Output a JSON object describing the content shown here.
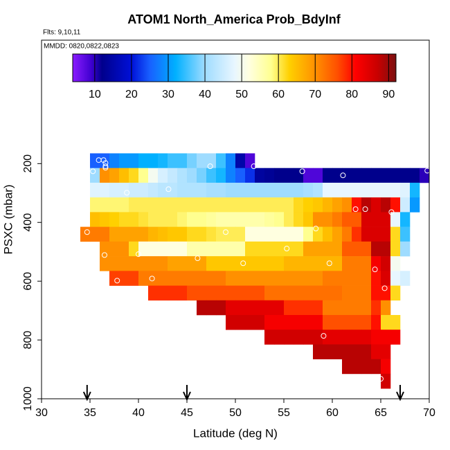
{
  "chart_data": {
    "type": "heatmap",
    "title": "ATOM1 North_America Prob_BdyInf",
    "subtitle": "Flts: 9,10,11",
    "annotation": "MMDD: 0820,0822,0823",
    "xlabel": "Latitude (deg N)",
    "ylabel": "PSXC (mbar)",
    "xlim": [
      30,
      70
    ],
    "xticks": [
      30,
      35,
      40,
      45,
      50,
      55,
      60,
      65,
      70
    ],
    "ylim": [
      1000,
      -220
    ],
    "yticks": [
      200,
      400,
      600,
      800,
      1000
    ],
    "clim": [
      4,
      92
    ],
    "cticks": [
      10,
      20,
      30,
      40,
      50,
      60,
      70,
      80,
      90
    ],
    "colorscale": [
      {
        "value": 4,
        "color": "#8a1cff"
      },
      {
        "value": 9,
        "color": "#4000d0"
      },
      {
        "value": 12,
        "color": "#00008c"
      },
      {
        "value": 20,
        "color": "#0010d8"
      },
      {
        "value": 25,
        "color": "#1860ff"
      },
      {
        "value": 32,
        "color": "#00b0ff"
      },
      {
        "value": 40,
        "color": "#9fdcff"
      },
      {
        "value": 48,
        "color": "#e8f6ff"
      },
      {
        "value": 52,
        "color": "#ffffe0"
      },
      {
        "value": 58,
        "color": "#ffff90"
      },
      {
        "value": 63,
        "color": "#ffd000"
      },
      {
        "value": 70,
        "color": "#ff9000"
      },
      {
        "value": 76,
        "color": "#ff5000"
      },
      {
        "value": 81,
        "color": "#ff0000"
      },
      {
        "value": 87,
        "color": "#c80000"
      },
      {
        "value": 92,
        "color": "#7a1010"
      }
    ],
    "cell_height": 50,
    "cell_width": 1,
    "rows": [
      {
        "p": 190,
        "lat0": 35,
        "values": [
          25,
          25,
          28,
          30,
          30,
          32,
          32,
          33,
          35,
          35,
          38,
          40,
          40,
          35,
          28,
          15,
          8
        ]
      },
      {
        "p": 240,
        "lat0": 35,
        "values": [
          40,
          70,
          68,
          65,
          62,
          58,
          50,
          46,
          44,
          42,
          40,
          38,
          35,
          33,
          28,
          25,
          22,
          14,
          13,
          12,
          12,
          12,
          8,
          8,
          12,
          12,
          12,
          12,
          12,
          12,
          12,
          12,
          12,
          12,
          10
        ]
      },
      {
        "p": 290,
        "lat0": 35,
        "values": [
          47,
          47,
          46,
          46,
          45,
          45,
          44,
          43,
          43,
          42,
          42,
          42,
          41,
          41,
          40,
          40,
          40,
          40,
          40,
          40,
          40,
          40,
          41,
          42,
          48,
          48,
          48,
          48,
          48,
          48,
          48,
          48,
          47,
          33
        ]
      },
      {
        "p": 340,
        "lat0": 35,
        "values": [
          59,
          59,
          59,
          59,
          60,
          60,
          60,
          60,
          60,
          60,
          60,
          60,
          60,
          60,
          60,
          60,
          60,
          60,
          60,
          60,
          60,
          62,
          63,
          64,
          66,
          68,
          70,
          80,
          88,
          85,
          88,
          80,
          45,
          30
        ]
      },
      {
        "p": 390,
        "lat0": 35,
        "values": [
          65,
          64,
          63,
          62,
          62,
          61,
          60,
          60,
          60,
          59,
          58,
          58,
          57,
          56,
          56,
          56,
          56,
          56,
          57,
          58,
          60,
          62,
          64,
          70,
          70,
          72,
          75,
          75,
          85,
          85,
          85,
          48,
          33
        ]
      },
      {
        "p": 440,
        "lat0": 34,
        "values": [
          72,
          72,
          72,
          68,
          68,
          68,
          68,
          66,
          65,
          64,
          64,
          62,
          62,
          61,
          60,
          60,
          60,
          52,
          52,
          52,
          52,
          52,
          52,
          58,
          62,
          65,
          68,
          72,
          78,
          85,
          85,
          85,
          62,
          35
        ]
      },
      {
        "p": 490,
        "lat0": 36,
        "values": [
          70,
          70,
          70,
          62,
          52,
          52,
          52,
          52,
          52,
          56,
          56,
          56,
          56,
          56,
          56,
          62,
          62,
          62,
          62,
          62,
          62,
          68,
          68,
          68,
          68,
          75,
          75,
          75,
          88,
          88,
          62,
          40
        ]
      },
      {
        "p": 540,
        "lat0": 36,
        "values": [
          70,
          70,
          70,
          70,
          70,
          70,
          70,
          68,
          68,
          68,
          68,
          64,
          64,
          64,
          64,
          64,
          64,
          64,
          64,
          66,
          66,
          66,
          66,
          66,
          66,
          72,
          72,
          72,
          82,
          86,
          50
        ]
      },
      {
        "p": 590,
        "lat0": 37,
        "values": [
          77,
          77,
          77,
          72,
          72,
          72,
          72,
          72,
          72,
          72,
          72,
          72,
          70,
          70,
          70,
          70,
          70,
          70,
          70,
          70,
          70,
          70,
          72,
          72,
          72,
          72,
          72,
          80,
          85,
          48,
          46
        ]
      },
      {
        "p": 640,
        "lat0": 41,
        "values": [
          78,
          78,
          78,
          78,
          76,
          76,
          76,
          76,
          76,
          76,
          76,
          76,
          73,
          73,
          73,
          73,
          73,
          73,
          73,
          73,
          72,
          72,
          72,
          80,
          80,
          62
        ]
      },
      {
        "p": 690,
        "lat0": 46,
        "values": [
          88,
          88,
          88,
          84,
          84,
          84,
          84,
          84,
          84,
          78,
          78,
          78,
          78,
          72,
          72,
          72,
          72,
          72,
          78,
          70
        ]
      },
      {
        "p": 740,
        "lat0": 49,
        "values": [
          86,
          86,
          86,
          86,
          82,
          82,
          82,
          82,
          82,
          82,
          76,
          76,
          76,
          76,
          76,
          80,
          62,
          62
        ]
      },
      {
        "p": 790,
        "lat0": 53,
        "values": [
          86,
          86,
          86,
          86,
          86,
          86,
          84,
          84,
          84,
          84,
          84,
          82,
          82,
          82
        ]
      },
      {
        "p": 840,
        "lat0": 58,
        "values": [
          88,
          88,
          88,
          88,
          88,
          88,
          84,
          84
        ]
      },
      {
        "p": 890,
        "lat0": 61,
        "values": [
          88,
          88,
          88,
          88,
          82
        ]
      },
      {
        "p": 940,
        "lat0": 65,
        "values": [
          86
        ]
      }
    ],
    "points": {
      "lat": [
        35.9,
        36.4,
        36.6,
        36.6,
        36.6,
        35.3,
        47.4,
        51.9,
        56.9,
        61.1,
        69.8,
        38.8,
        43.1,
        34.7,
        49,
        58.3,
        62.4,
        63.4,
        66.1,
        36.5,
        40,
        46.1,
        50.8,
        55.3,
        59.7,
        64.4,
        65.4,
        37.8,
        41.4,
        59.1,
        65
      ],
      "p": [
        188,
        188,
        198,
        209,
        214,
        226,
        209,
        209,
        226,
        240,
        224,
        299,
        287,
        433,
        433,
        421,
        355,
        355,
        365,
        511,
        508,
        522,
        539,
        489,
        539,
        560,
        624,
        598,
        591,
        786,
        932
      ]
    },
    "arrows": [
      34.7,
      45,
      67
    ]
  }
}
